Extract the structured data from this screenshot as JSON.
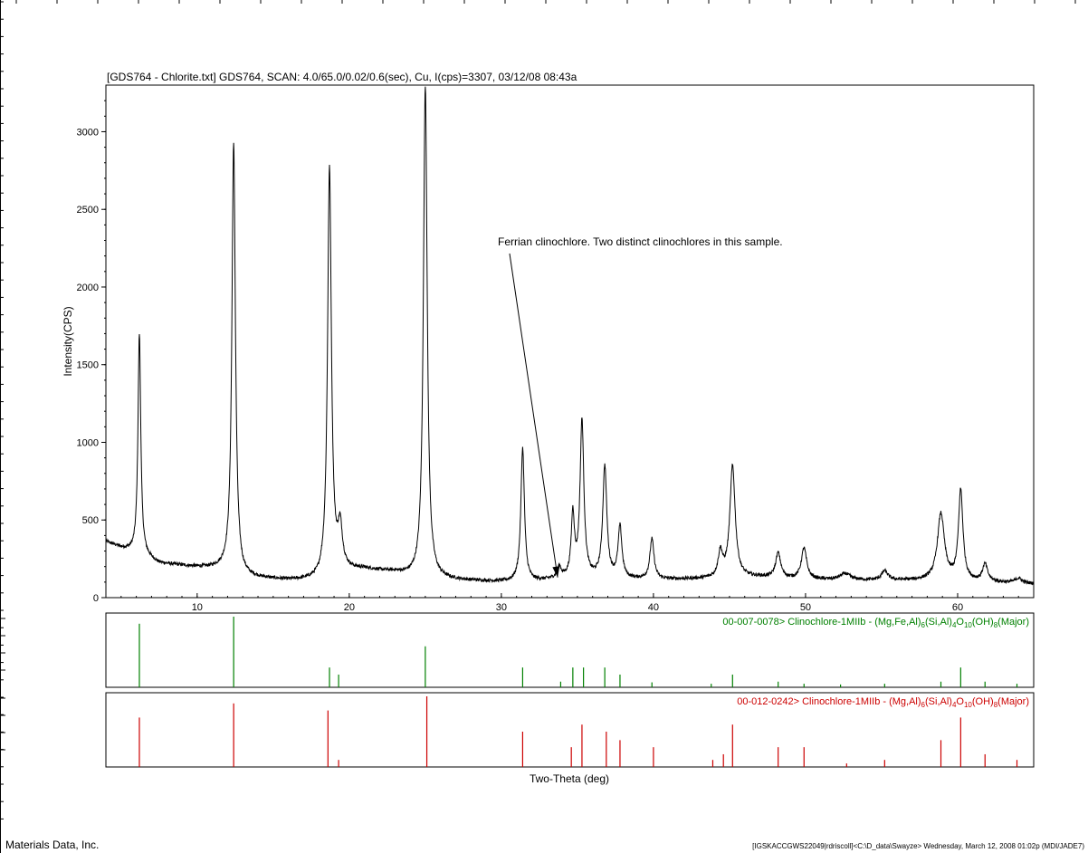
{
  "footer": {
    "left": "Materials Data, Inc.",
    "right": "[IGSKACCGWS22049|rdriscoll]<C:\\D_data\\Swayze> Wednesday, March 12, 2008 01:02p (MDI/JADE7)"
  },
  "chart_data": {
    "type": "line",
    "title": "[GDS764 - Chlorite.txt] GDS764, SCAN: 4.0/65.0/0.02/0.6(sec), Cu, I(cps)=3307, 03/12/08 08:43a",
    "xlabel": "Two-Theta (deg)",
    "ylabel": "Intensity(CPS)",
    "xlim": [
      4.0,
      65.0
    ],
    "ylim": [
      0,
      3300
    ],
    "xticks": [
      10,
      20,
      30,
      40,
      50,
      60
    ],
    "yticks": [
      0,
      500,
      1000,
      1500,
      2000,
      2500,
      3000
    ],
    "grid": false,
    "annotation": {
      "text": "Ferrian clinochlore.  Two distinct clinochlores in this sample.",
      "arrow_to": [
        33.7,
        130
      ]
    },
    "pattern": {
      "background": [
        [
          4.0,
          360
        ],
        [
          5.0,
          320
        ],
        [
          6.5,
          270
        ],
        [
          7.5,
          220
        ],
        [
          10,
          195
        ],
        [
          12,
          180
        ],
        [
          13,
          130
        ],
        [
          16,
          110
        ],
        [
          18,
          110
        ],
        [
          19.5,
          170
        ],
        [
          21,
          180
        ],
        [
          23,
          160
        ],
        [
          24.5,
          120
        ],
        [
          27,
          110
        ],
        [
          30,
          100
        ],
        [
          32,
          100
        ],
        [
          34,
          120
        ],
        [
          36,
          120
        ],
        [
          40,
          115
        ],
        [
          44,
          120
        ],
        [
          47,
          130
        ],
        [
          50,
          115
        ],
        [
          55,
          110
        ],
        [
          58,
          110
        ],
        [
          62,
          100
        ],
        [
          65,
          90
        ]
      ],
      "peaks": [
        {
          "x": 6.2,
          "height": 1420,
          "fwhm": 0.22
        },
        {
          "x": 12.4,
          "height": 2760,
          "fwhm": 0.28
        },
        {
          "x": 18.7,
          "height": 2620,
          "fwhm": 0.3
        },
        {
          "x": 19.4,
          "height": 260,
          "fwhm": 0.35
        },
        {
          "x": 25.0,
          "height": 3180,
          "fwhm": 0.3
        },
        {
          "x": 31.4,
          "height": 860,
          "fwhm": 0.28
        },
        {
          "x": 33.8,
          "height": 70,
          "fwhm": 0.3
        },
        {
          "x": 34.7,
          "height": 400,
          "fwhm": 0.25
        },
        {
          "x": 35.3,
          "height": 1010,
          "fwhm": 0.3
        },
        {
          "x": 36.8,
          "height": 720,
          "fwhm": 0.32
        },
        {
          "x": 37.8,
          "height": 330,
          "fwhm": 0.3
        },
        {
          "x": 39.9,
          "height": 260,
          "fwhm": 0.32
        },
        {
          "x": 44.4,
          "height": 160,
          "fwhm": 0.35
        },
        {
          "x": 45.2,
          "height": 720,
          "fwhm": 0.42
        },
        {
          "x": 48.2,
          "height": 160,
          "fwhm": 0.4
        },
        {
          "x": 49.9,
          "height": 200,
          "fwhm": 0.42
        },
        {
          "x": 52.6,
          "height": 40,
          "fwhm": 0.8
        },
        {
          "x": 55.2,
          "height": 60,
          "fwhm": 0.5
        },
        {
          "x": 58.9,
          "height": 430,
          "fwhm": 0.55
        },
        {
          "x": 60.2,
          "height": 580,
          "fwhm": 0.35
        },
        {
          "x": 61.8,
          "height": 110,
          "fwhm": 0.4
        },
        {
          "x": 64.0,
          "height": 30,
          "fwhm": 0.5
        }
      ]
    },
    "reference_patterns": [
      {
        "label": "00-007-0078> Clinochlore-1MIIb - (Mg,Fe,Al)6(Si,Al)4O10(OH)8(Major)",
        "label_parts": [
          [
            "00-007-0078> Clinochlore-1MIIb - (Mg,Fe,Al)",
            false
          ],
          [
            "6",
            true
          ],
          [
            "(Si,Al)",
            false
          ],
          [
            "4",
            true
          ],
          [
            "O",
            false
          ],
          [
            "10",
            true
          ],
          [
            "(OH)",
            false
          ],
          [
            "8",
            true
          ],
          [
            "(Major)",
            false
          ]
        ],
        "color": "#008000",
        "lines": [
          {
            "x": 6.2,
            "i": 90
          },
          {
            "x": 12.4,
            "i": 100
          },
          {
            "x": 18.7,
            "i": 28
          },
          {
            "x": 19.3,
            "i": 18
          },
          {
            "x": 25.0,
            "i": 58
          },
          {
            "x": 31.4,
            "i": 28
          },
          {
            "x": 33.9,
            "i": 8
          },
          {
            "x": 34.7,
            "i": 28
          },
          {
            "x": 35.4,
            "i": 28
          },
          {
            "x": 36.8,
            "i": 28
          },
          {
            "x": 37.8,
            "i": 18
          },
          {
            "x": 39.9,
            "i": 7
          },
          {
            "x": 43.8,
            "i": 5
          },
          {
            "x": 45.2,
            "i": 18
          },
          {
            "x": 48.2,
            "i": 8
          },
          {
            "x": 49.9,
            "i": 5
          },
          {
            "x": 52.3,
            "i": 4
          },
          {
            "x": 55.2,
            "i": 5
          },
          {
            "x": 58.9,
            "i": 8
          },
          {
            "x": 60.2,
            "i": 28
          },
          {
            "x": 61.8,
            "i": 8
          },
          {
            "x": 63.9,
            "i": 5
          }
        ]
      },
      {
        "label": "00-012-0242> Clinochlore-1MIIb - (Mg,Al)6(Si,Al)4O10(OH)8(Major)",
        "label_parts": [
          [
            "00-012-0242> Clinochlore-1MIIb - (Mg,Al)",
            false
          ],
          [
            "6",
            true
          ],
          [
            "(Si,Al)",
            false
          ],
          [
            "4",
            true
          ],
          [
            "O",
            false
          ],
          [
            "10",
            true
          ],
          [
            "(OH)",
            false
          ],
          [
            "8",
            true
          ],
          [
            "(Major)",
            false
          ]
        ],
        "color": "#cc0000",
        "lines": [
          {
            "x": 6.2,
            "i": 70
          },
          {
            "x": 12.4,
            "i": 90
          },
          {
            "x": 18.6,
            "i": 80
          },
          {
            "x": 19.3,
            "i": 10
          },
          {
            "x": 25.1,
            "i": 100
          },
          {
            "x": 31.4,
            "i": 50
          },
          {
            "x": 34.6,
            "i": 28
          },
          {
            "x": 35.3,
            "i": 60
          },
          {
            "x": 36.9,
            "i": 50
          },
          {
            "x": 37.8,
            "i": 38
          },
          {
            "x": 40.0,
            "i": 28
          },
          {
            "x": 43.9,
            "i": 10
          },
          {
            "x": 44.6,
            "i": 18
          },
          {
            "x": 45.2,
            "i": 60
          },
          {
            "x": 48.2,
            "i": 28
          },
          {
            "x": 49.9,
            "i": 28
          },
          {
            "x": 52.7,
            "i": 5
          },
          {
            "x": 55.2,
            "i": 10
          },
          {
            "x": 58.9,
            "i": 38
          },
          {
            "x": 60.2,
            "i": 70
          },
          {
            "x": 61.8,
            "i": 18
          },
          {
            "x": 63.9,
            "i": 10
          }
        ]
      }
    ]
  }
}
